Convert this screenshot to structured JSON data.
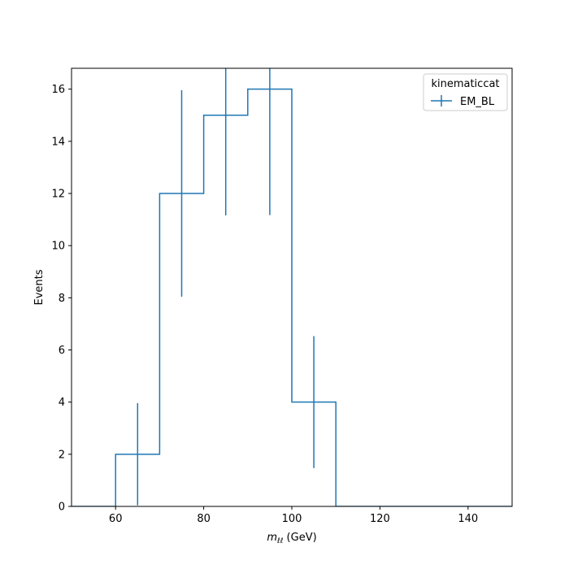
{
  "chart_data": {
    "type": "histogram-step",
    "title": "",
    "xlabel": {
      "var": "m",
      "sub": "ℓℓ",
      "unit": " (GeV)"
    },
    "ylabel": "Events",
    "xlim": [
      50,
      150
    ],
    "ylim": [
      0,
      16.8
    ],
    "xticks": [
      60,
      80,
      100,
      120,
      140
    ],
    "yticks": [
      0,
      2,
      4,
      6,
      8,
      10,
      12,
      14,
      16
    ],
    "grid": false,
    "legend": {
      "title": "kinematiccat",
      "placement": "top-right"
    },
    "series": [
      {
        "name": "EM_BL",
        "color": "#1f77b4",
        "bin_edges": [
          50,
          60,
          70,
          80,
          90,
          100,
          110,
          120,
          130,
          140,
          150
        ],
        "values": [
          0,
          2,
          12,
          15,
          16,
          4,
          0,
          0,
          0,
          0
        ],
        "errors": [
          0,
          1.96,
          3.96,
          3.84,
          4.83,
          2.53,
          0,
          0,
          0,
          0
        ]
      }
    ]
  }
}
